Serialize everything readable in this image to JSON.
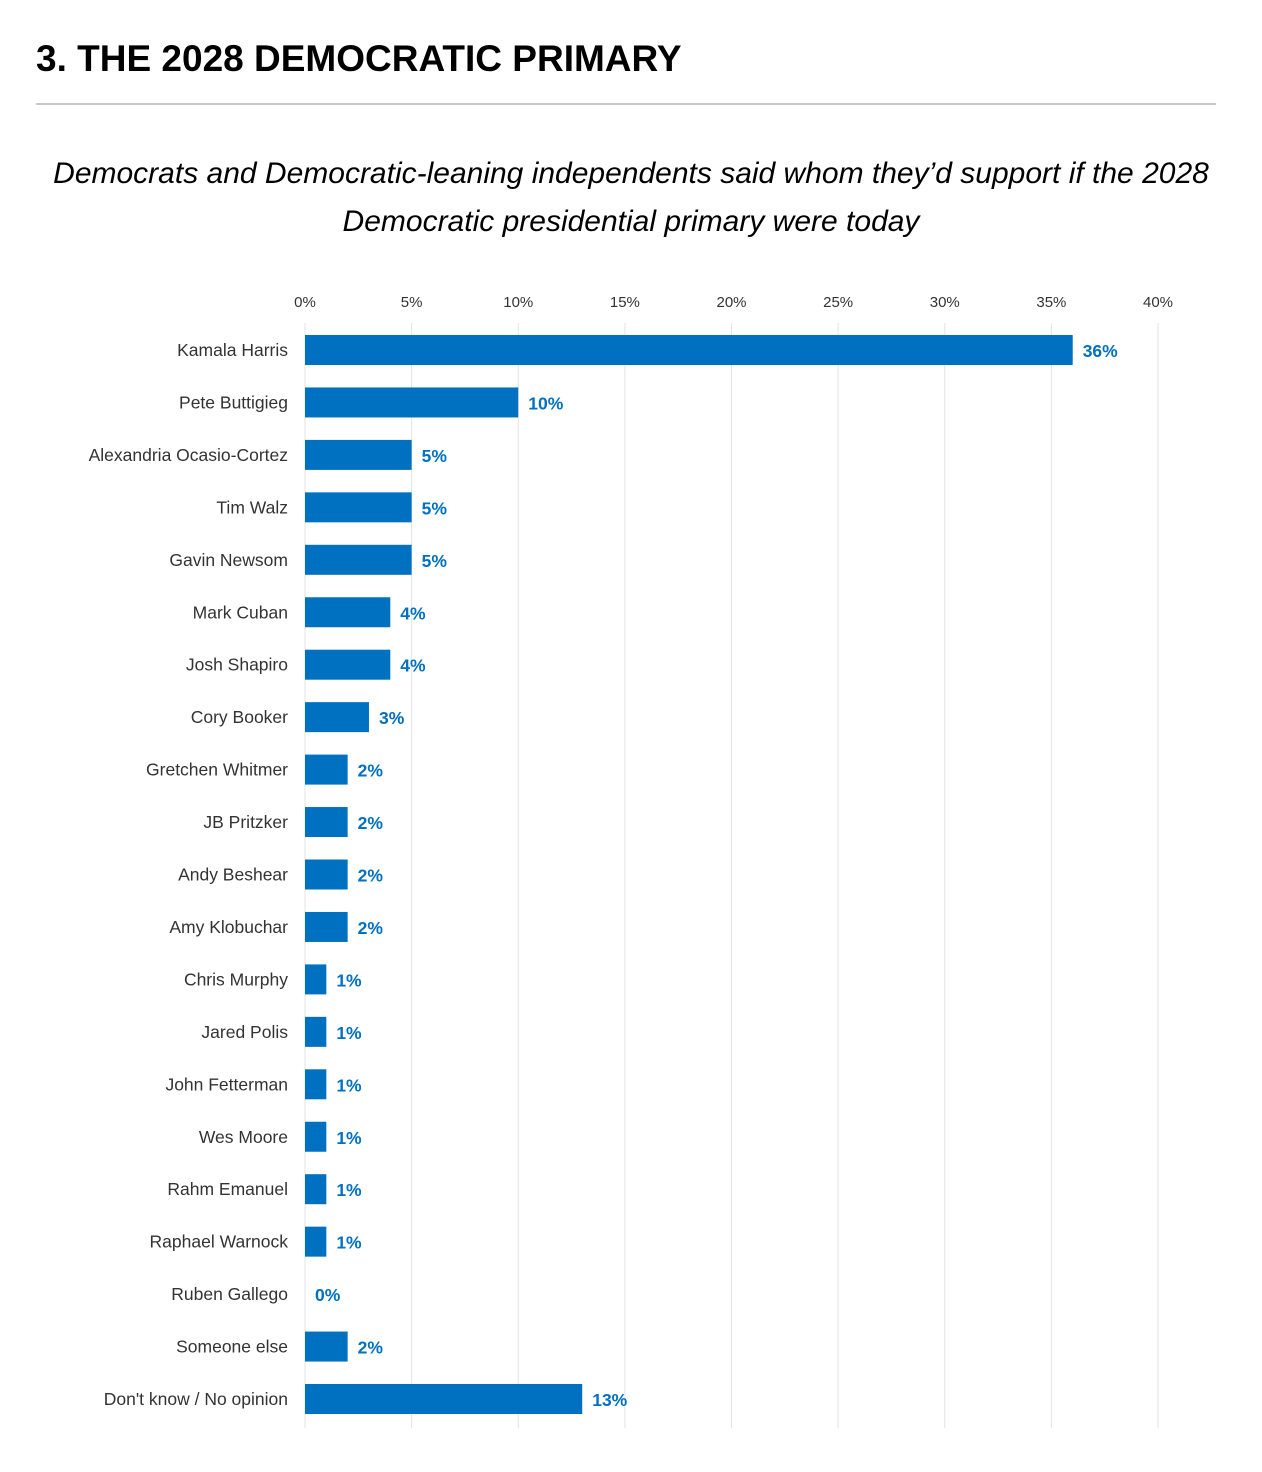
{
  "header": {
    "title": "3. THE 2028 DEMOCRATIC PRIMARY"
  },
  "chart_data": {
    "type": "bar",
    "orientation": "horizontal",
    "title": "Democrats and Democratic-leaning independents said whom they’d support if the 2028 Democratic presidential primary were today",
    "xlabel": "",
    "ylabel": "",
    "xlim": [
      0,
      40
    ],
    "ticks": [
      "0%",
      "5%",
      "10%",
      "15%",
      "20%",
      "25%",
      "30%",
      "35%",
      "40%"
    ],
    "tick_values": [
      0,
      5,
      10,
      15,
      20,
      25,
      30,
      35,
      40
    ],
    "axis_position": "top",
    "grid": true,
    "bar_color": "#0070c0",
    "label_color": "#0070c0",
    "categories": [
      "Kamala Harris",
      "Pete Buttigieg",
      "Alexandria Ocasio-Cortez",
      "Tim Walz",
      "Gavin Newsom",
      "Mark Cuban",
      "Josh Shapiro",
      "Cory Booker",
      "Gretchen Whitmer",
      "JB Pritzker",
      "Andy Beshear",
      "Amy Klobuchar",
      "Chris Murphy",
      "Jared Polis",
      "John Fetterman",
      "Wes Moore",
      "Rahm Emanuel",
      "Raphael Warnock",
      "Ruben Gallego",
      "Someone else",
      "Don't know / No opinion"
    ],
    "values": [
      36,
      10,
      5,
      5,
      5,
      4,
      4,
      3,
      2,
      2,
      2,
      2,
      1,
      1,
      1,
      1,
      1,
      1,
      0,
      2,
      13
    ],
    "data_labels": [
      "36%",
      "10%",
      "5%",
      "5%",
      "5%",
      "4%",
      "4%",
      "3%",
      "2%",
      "2%",
      "2%",
      "2%",
      "1%",
      "1%",
      "1%",
      "1%",
      "1%",
      "1%",
      "0%",
      "2%",
      "13%"
    ]
  }
}
